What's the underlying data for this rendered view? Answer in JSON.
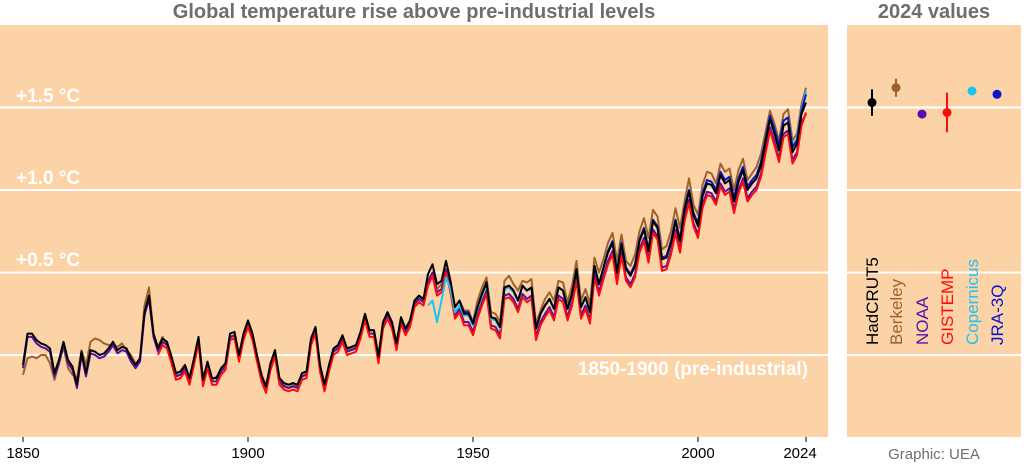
{
  "chart_data": [
    {
      "type": "line",
      "title": "Global temperature rise above pre-industrial levels",
      "xlabel": "",
      "ylabel": "",
      "xlim": [
        1850,
        2024
      ],
      "ylim": [
        -0.4,
        2.0
      ],
      "grid": true,
      "x_ticks": [
        "1850",
        "1900",
        "1950",
        "2000",
        "2024"
      ],
      "x_tick_values": [
        1850,
        1900,
        1950,
        2000,
        2024
      ],
      "y_ticks": [
        {
          "value": 1.5,
          "label": "+1.5 °C"
        },
        {
          "value": 1.0,
          "label": "+1.0 °C"
        },
        {
          "value": 0.5,
          "label": "+0.5 °C"
        },
        {
          "value": 0.0,
          "label": ""
        }
      ],
      "annotation": "1850-1900 (pre-industrial)",
      "background": "#fcd3a6",
      "series": [
        {
          "name": "Berkeley",
          "color": "#a0622d",
          "start": 1850,
          "values": [
            -0.12,
            -0.02,
            -0.01,
            -0.02,
            0.0,
            0.0,
            -0.05,
            -0.15,
            -0.05,
            0.05,
            -0.08,
            -0.12,
            -0.14,
            0.03,
            -0.06,
            0.08,
            0.1,
            0.09,
            0.07,
            0.06,
            0.06,
            0.05,
            0.07,
            0.03,
            0.0,
            -0.05,
            -0.03,
            0.3,
            0.41,
            0.13,
            0.05,
            0.11,
            0.06,
            -0.03,
            -0.12,
            -0.12,
            -0.08,
            -0.16,
            -0.04,
            0.1,
            -0.14,
            -0.06,
            -0.15,
            -0.13,
            -0.1,
            -0.06,
            0.1,
            0.12,
            -0.02,
            0.11,
            0.19,
            0.12,
            -0.02,
            -0.12,
            -0.2,
            -0.06,
            0.01,
            -0.16,
            -0.18,
            -0.2,
            -0.18,
            -0.19,
            -0.13,
            -0.11,
            0.08,
            0.16,
            -0.06,
            -0.18,
            -0.07,
            0.03,
            0.05,
            0.11,
            0.03,
            0.04,
            0.05,
            0.13,
            0.25,
            0.15,
            0.15,
            0.0,
            0.19,
            0.25,
            0.2,
            0.07,
            0.22,
            0.16,
            0.2,
            0.32,
            0.35,
            0.33,
            0.45,
            0.5,
            0.4,
            0.43,
            0.52,
            0.41,
            0.29,
            0.33,
            0.27,
            0.27,
            0.2,
            0.33,
            0.41,
            0.47,
            0.26,
            0.25,
            0.2,
            0.45,
            0.48,
            0.43,
            0.39,
            0.45,
            0.44,
            0.46,
            0.19,
            0.27,
            0.34,
            0.38,
            0.33,
            0.45,
            0.44,
            0.32,
            0.42,
            0.57,
            0.33,
            0.4,
            0.31,
            0.59,
            0.5,
            0.58,
            0.68,
            0.74,
            0.57,
            0.73,
            0.57,
            0.54,
            0.61,
            0.75,
            0.83,
            0.71,
            0.88,
            0.84,
            0.64,
            0.66,
            0.75,
            0.89,
            0.77,
            0.93,
            1.07,
            0.91,
            0.85,
            1.03,
            1.11,
            1.1,
            1.04,
            1.16,
            1.11,
            1.13,
            1.0,
            1.12,
            1.19,
            1.06,
            1.1,
            1.14,
            1.22,
            1.35,
            1.48,
            1.4,
            1.3,
            1.46,
            1.49,
            1.3,
            1.34,
            1.52,
            1.62
          ]
        },
        {
          "name": "NOAA",
          "color": "#5410a8",
          "start": 1850,
          "values": [
            -0.08,
            0.11,
            0.11,
            0.07,
            0.05,
            0.04,
            0.02,
            -0.13,
            -0.05,
            0.06,
            -0.05,
            -0.09,
            -0.2,
            0.0,
            -0.13,
            0.01,
            0.0,
            -0.02,
            -0.01,
            0.02,
            0.06,
            0.01,
            0.03,
            0.02,
            -0.04,
            -0.08,
            -0.04,
            0.24,
            0.34,
            0.11,
            0.02,
            0.08,
            0.06,
            -0.03,
            -0.13,
            -0.12,
            -0.08,
            -0.16,
            -0.04,
            0.09,
            -0.17,
            -0.06,
            -0.16,
            -0.16,
            -0.1,
            -0.07,
            0.11,
            0.12,
            -0.02,
            0.11,
            0.19,
            0.11,
            -0.02,
            -0.14,
            -0.21,
            -0.07,
            0.01,
            -0.16,
            -0.19,
            -0.2,
            -0.19,
            -0.2,
            -0.13,
            -0.12,
            0.08,
            0.15,
            -0.08,
            -0.2,
            -0.08,
            0.02,
            0.04,
            0.1,
            0.02,
            0.03,
            0.04,
            0.12,
            0.23,
            0.13,
            0.13,
            -0.03,
            0.18,
            0.24,
            0.18,
            0.05,
            0.21,
            0.14,
            0.19,
            0.31,
            0.34,
            0.32,
            0.44,
            0.5,
            0.38,
            0.4,
            0.52,
            0.4,
            0.24,
            0.28,
            0.2,
            0.2,
            0.14,
            0.24,
            0.32,
            0.39,
            0.18,
            0.17,
            0.12,
            0.36,
            0.37,
            0.34,
            0.28,
            0.37,
            0.34,
            0.36,
            0.11,
            0.2,
            0.25,
            0.29,
            0.23,
            0.36,
            0.34,
            0.23,
            0.32,
            0.47,
            0.24,
            0.3,
            0.21,
            0.49,
            0.38,
            0.48,
            0.57,
            0.63,
            0.45,
            0.62,
            0.47,
            0.43,
            0.49,
            0.64,
            0.71,
            0.58,
            0.76,
            0.72,
            0.53,
            0.54,
            0.63,
            0.76,
            0.64,
            0.83,
            0.94,
            0.8,
            0.73,
            0.91,
            0.99,
            0.98,
            0.93,
            1.04,
            0.99,
            1.01,
            0.88,
            1.0,
            1.07,
            0.95,
            0.99,
            1.02,
            1.1,
            1.24,
            1.38,
            1.29,
            1.19,
            1.34,
            1.36,
            1.18,
            1.23,
            1.41,
            1.46
          ]
        },
        {
          "name": "GISTEMP",
          "color": "#ff0a0a",
          "start": 1880,
          "values": [
            0.0,
            0.06,
            0.04,
            -0.05,
            -0.15,
            -0.14,
            -0.1,
            -0.18,
            -0.06,
            0.07,
            -0.19,
            -0.08,
            -0.18,
            -0.18,
            -0.12,
            -0.09,
            0.09,
            0.1,
            -0.04,
            0.09,
            0.17,
            0.09,
            -0.04,
            -0.16,
            -0.23,
            -0.09,
            -0.01,
            -0.18,
            -0.21,
            -0.22,
            -0.21,
            -0.22,
            -0.15,
            -0.14,
            0.06,
            0.13,
            -0.1,
            -0.22,
            -0.1,
            0.0,
            0.02,
            0.08,
            0.0,
            0.01,
            0.02,
            0.1,
            0.21,
            0.11,
            0.11,
            -0.05,
            0.16,
            0.22,
            0.16,
            0.03,
            0.19,
            0.12,
            0.17,
            0.29,
            0.32,
            0.3,
            0.42,
            0.48,
            0.36,
            0.38,
            0.5,
            0.38,
            0.22,
            0.26,
            0.18,
            0.18,
            0.12,
            0.22,
            0.3,
            0.37,
            0.16,
            0.15,
            0.1,
            0.34,
            0.35,
            0.32,
            0.26,
            0.35,
            0.32,
            0.34,
            0.09,
            0.18,
            0.23,
            0.27,
            0.21,
            0.34,
            0.32,
            0.21,
            0.3,
            0.45,
            0.22,
            0.28,
            0.19,
            0.47,
            0.36,
            0.46,
            0.55,
            0.61,
            0.43,
            0.6,
            0.45,
            0.41,
            0.47,
            0.62,
            0.69,
            0.56,
            0.74,
            0.7,
            0.51,
            0.52,
            0.61,
            0.74,
            0.62,
            0.81,
            0.92,
            0.78,
            0.71,
            0.89,
            0.97,
            0.96,
            0.91,
            1.02,
            0.97,
            0.99,
            0.86,
            0.98,
            1.05,
            0.93,
            0.97,
            1.0,
            1.08,
            1.22,
            1.36,
            1.27,
            1.17,
            1.32,
            1.34,
            1.16,
            1.21,
            1.39,
            1.47
          ]
        },
        {
          "name": "Copernicus",
          "color": "#1ec3f0",
          "start": 1940,
          "values": [
            0.3,
            0.33,
            0.2,
            0.33,
            0.47,
            0.4,
            0.26,
            0.3,
            0.24,
            0.24,
            0.18,
            0.28,
            0.36,
            0.43,
            0.22,
            0.21,
            0.16,
            0.4,
            0.41,
            0.38,
            0.33,
            0.42,
            0.39,
            0.41,
            0.16,
            0.25,
            0.3,
            0.34,
            0.28,
            0.41,
            0.39,
            0.28,
            0.37,
            0.52,
            0.29,
            0.35,
            0.26,
            0.54,
            0.43,
            0.53,
            0.63,
            0.69,
            0.51,
            0.68,
            0.53,
            0.49,
            0.55,
            0.7,
            0.77,
            0.64,
            0.82,
            0.78,
            0.59,
            0.6,
            0.69,
            0.82,
            0.7,
            0.89,
            1.0,
            0.86,
            0.8,
            0.98,
            1.06,
            1.05,
            1.0,
            1.11,
            1.06,
            1.08,
            0.95,
            1.07,
            1.14,
            1.02,
            1.06,
            1.09,
            1.17,
            1.31,
            1.45,
            1.37,
            1.27,
            1.42,
            1.44,
            1.27,
            1.31,
            1.49,
            1.6
          ]
        },
        {
          "name": "JRA-3Q",
          "color": "#0a14c8",
          "start": 1947,
          "values": [
            0.33,
            0.26,
            0.26,
            0.19,
            0.29,
            0.37,
            0.44,
            0.23,
            0.22,
            0.17,
            0.41,
            0.42,
            0.39,
            0.33,
            0.42,
            0.39,
            0.41,
            0.16,
            0.25,
            0.3,
            0.34,
            0.28,
            0.41,
            0.39,
            0.28,
            0.37,
            0.52,
            0.29,
            0.35,
            0.26,
            0.54,
            0.43,
            0.53,
            0.63,
            0.69,
            0.51,
            0.68,
            0.53,
            0.49,
            0.55,
            0.7,
            0.77,
            0.64,
            0.82,
            0.78,
            0.59,
            0.6,
            0.69,
            0.82,
            0.7,
            0.89,
            1.0,
            0.86,
            0.8,
            0.98,
            1.06,
            1.05,
            1.0,
            1.11,
            1.06,
            1.08,
            0.95,
            1.07,
            1.14,
            1.02,
            1.06,
            1.09,
            1.17,
            1.31,
            1.45,
            1.37,
            1.27,
            1.42,
            1.44,
            1.26,
            1.3,
            1.48,
            1.58
          ]
        },
        {
          "name": "HadCRUT5",
          "color": "#000000",
          "start": 1850,
          "values": [
            -0.06,
            0.13,
            0.13,
            0.09,
            0.07,
            0.06,
            0.04,
            -0.11,
            -0.03,
            0.08,
            -0.03,
            -0.07,
            -0.18,
            0.02,
            -0.11,
            0.03,
            0.02,
            0.0,
            0.01,
            0.04,
            0.08,
            0.03,
            0.05,
            0.04,
            -0.02,
            -0.06,
            -0.02,
            0.26,
            0.36,
            0.13,
            0.04,
            0.1,
            0.08,
            -0.01,
            -0.11,
            -0.1,
            -0.06,
            -0.14,
            -0.02,
            0.11,
            -0.15,
            -0.04,
            -0.14,
            -0.14,
            -0.08,
            -0.05,
            0.13,
            0.14,
            0.0,
            0.13,
            0.21,
            0.13,
            0.0,
            -0.12,
            -0.19,
            -0.05,
            0.03,
            -0.14,
            -0.17,
            -0.18,
            -0.17,
            -0.18,
            -0.11,
            -0.1,
            0.1,
            0.17,
            -0.06,
            -0.18,
            -0.06,
            0.04,
            0.06,
            0.12,
            0.04,
            0.05,
            0.06,
            0.14,
            0.25,
            0.15,
            0.15,
            -0.01,
            0.2,
            0.26,
            0.2,
            0.07,
            0.23,
            0.16,
            0.21,
            0.33,
            0.36,
            0.34,
            0.49,
            0.55,
            0.43,
            0.45,
            0.57,
            0.45,
            0.29,
            0.33,
            0.25,
            0.25,
            0.19,
            0.29,
            0.37,
            0.44,
            0.23,
            0.22,
            0.17,
            0.41,
            0.42,
            0.39,
            0.33,
            0.42,
            0.39,
            0.41,
            0.16,
            0.25,
            0.3,
            0.34,
            0.28,
            0.41,
            0.39,
            0.28,
            0.37,
            0.52,
            0.29,
            0.35,
            0.26,
            0.54,
            0.43,
            0.53,
            0.62,
            0.68,
            0.5,
            0.67,
            0.52,
            0.48,
            0.54,
            0.69,
            0.76,
            0.63,
            0.81,
            0.77,
            0.58,
            0.59,
            0.68,
            0.81,
            0.69,
            0.88,
            0.99,
            0.85,
            0.78,
            0.96,
            1.04,
            1.03,
            0.98,
            1.09,
            1.04,
            1.06,
            0.93,
            1.05,
            1.12,
            1.0,
            1.04,
            1.07,
            1.15,
            1.29,
            1.43,
            1.34,
            1.24,
            1.39,
            1.41,
            1.23,
            1.28,
            1.46,
            1.53
          ]
        }
      ]
    },
    {
      "type": "scatter",
      "title": "2024 values",
      "ylim": [
        -0.4,
        2.0
      ],
      "grid": true,
      "background": "#fcd3a6",
      "categories": [
        "HadCRUT5",
        "Berkeley",
        "NOAA",
        "GISTEMP",
        "Copernicus",
        "JRA-3Q"
      ],
      "values": [
        1.53,
        1.62,
        1.46,
        1.47,
        1.6,
        1.58
      ],
      "uncertainty": [
        0.08,
        0.055,
        null,
        0.12,
        null,
        null
      ],
      "colors": [
        "#000000",
        "#a0622d",
        "#5410a8",
        "#ff0a0a",
        "#1ec3f0",
        "#0a14c8"
      ]
    }
  ],
  "credit": "Graphic: UEA"
}
